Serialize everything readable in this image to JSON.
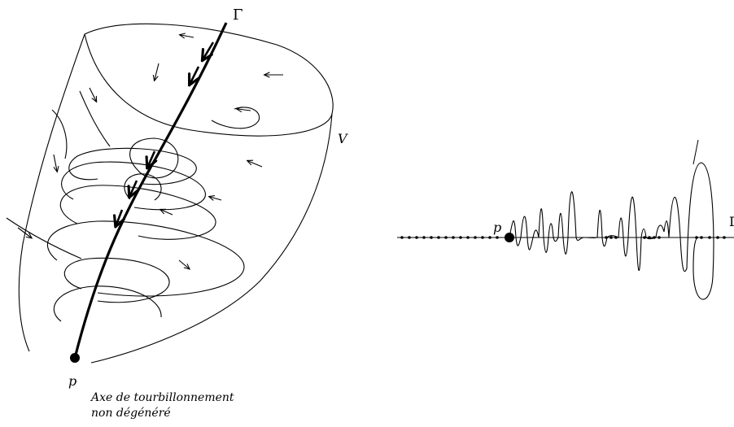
{
  "left_figure": {
    "axis_label": "Γ",
    "cone_label": "V",
    "point_label": "p",
    "caption_line1": "Axe de tourbillonnement",
    "caption_line2": "non dégénéré"
  },
  "right_figure": {
    "point_label": "p",
    "axis_label": "Γ"
  },
  "colors": {
    "ink": "#000000",
    "background": "#ffffff"
  }
}
